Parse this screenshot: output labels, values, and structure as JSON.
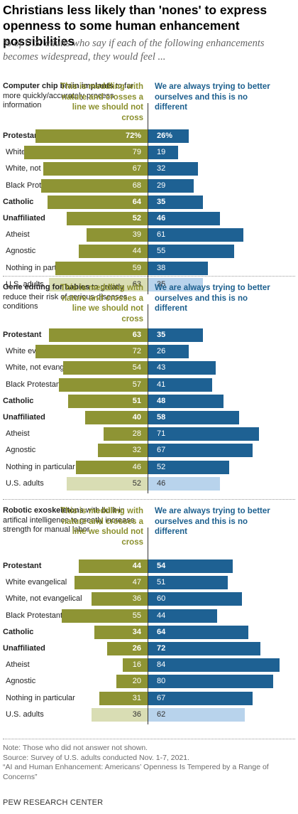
{
  "title": "Christians less likely than 'nones' to express openness to some human enhancement possibilities",
  "subtitle": "% of U.S. adults who say if each of the following enhancements becomes widespread, they would feel ...",
  "colors": {
    "left": "#8e9434",
    "left_total": "#d9ddb4",
    "right": "#1e6193",
    "right_total": "#b8d3ec",
    "left_head": "#8a8f2c",
    "right_head": "#1c5f8e"
  },
  "legend": {
    "left": "This is meddling with nature and crosses a line we should not cross",
    "right": "We are always trying to better ourselves and this is no different"
  },
  "chart_data": {
    "type": "bar",
    "orientation": "horizontal-diverging",
    "categories": [
      "Protestant",
      "White evangelical",
      "White, not evangelical",
      "Black Protestant",
      "Catholic",
      "Unaffiliated",
      "Atheist",
      "Agnostic",
      "Nothing in particular",
      "U.S. adults"
    ],
    "bold_categories": [
      "Protestant",
      "Catholic",
      "Unaffiliated"
    ],
    "series_names": [
      "This is meddling with nature and crosses a line we should not cross",
      "We are always trying to better ourselves and this is no different"
    ],
    "panels": [
      {
        "topic_bold": "Computer chip brain implants",
        "topic_rest": " to far more quickly/accurately process information",
        "left_values": [
          72,
          79,
          67,
          68,
          64,
          52,
          39,
          44,
          59,
          63
        ],
        "right_values": [
          26,
          19,
          32,
          29,
          35,
          46,
          61,
          55,
          38,
          35
        ]
      },
      {
        "topic_bold": "Gene editing for babies",
        "topic_rest": " to greatly reduce their risk of serious diseases, conditions",
        "left_values": [
          63,
          72,
          54,
          57,
          51,
          40,
          28,
          32,
          46,
          52
        ],
        "right_values": [
          35,
          26,
          43,
          41,
          48,
          58,
          71,
          67,
          52,
          46
        ]
      },
      {
        "topic_bold": "Robotic exoskeletons",
        "topic_rest": " with built-in artifical intelligence to greatly increase strength for manual labor",
        "left_values": [
          44,
          47,
          36,
          55,
          34,
          26,
          16,
          20,
          31,
          36
        ],
        "right_values": [
          54,
          51,
          60,
          44,
          64,
          72,
          84,
          80,
          67,
          62
        ]
      }
    ],
    "first_value_suffix": "%"
  },
  "notes": {
    "note": "Note: Those who did not answer not shown.",
    "source": "Source: Survey of U.S. adults conducted Nov. 1-7, 2021.",
    "report": "“AI and Human Enhancement: Americans’ Openness Is Tempered by a Range of Concerns”"
  },
  "org": "PEW RESEARCH CENTER"
}
